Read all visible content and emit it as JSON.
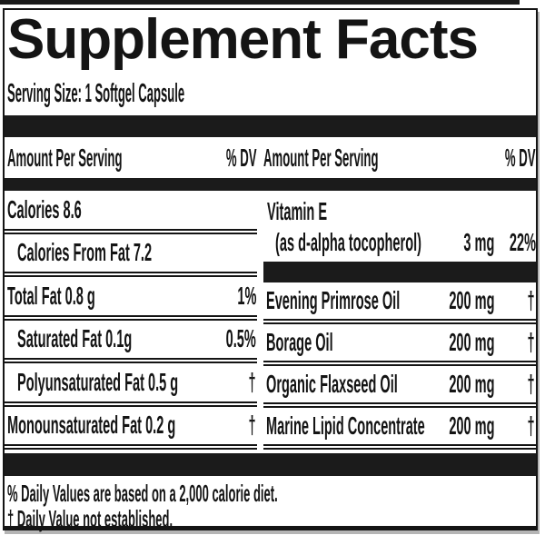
{
  "title": "Supplement Facts",
  "serving_size": "Serving Size: 1 Softgel Capsule",
  "columns_header": {
    "amount": "Amount Per Serving",
    "dv": "% DV"
  },
  "left_rows": [
    {
      "name": "Calories 8.6",
      "dv": ""
    },
    {
      "name": "Calories From Fat 7.2",
      "dv": ""
    },
    {
      "name": "Total Fat 0.8 g",
      "dv": "1%"
    },
    {
      "name": "Saturated Fat 0.1g",
      "dv": "0.5%"
    },
    {
      "name": "Polyunsaturated Fat 0.5 g",
      "dv": "†"
    },
    {
      "name": "Monounsaturated Fat 0.2 g",
      "dv": "†"
    }
  ],
  "right_column": {
    "vitamin_e": {
      "name": "Vitamin E",
      "sub": "(as d-alpha tocopherol)",
      "amount": "3 mg",
      "dv": "22%"
    },
    "rows": [
      {
        "name": "Evening Primrose Oil",
        "amount": "200 mg",
        "dv": "†"
      },
      {
        "name": "Borage Oil",
        "amount": "200 mg",
        "dv": "†"
      },
      {
        "name": "Organic Flaxseed Oil",
        "amount": "200 mg",
        "dv": "†"
      },
      {
        "name": "Marine Lipid Concentrate",
        "amount": "200 mg",
        "dv": "†"
      }
    ]
  },
  "footnotes": [
    "% Daily Values are based on a 2,000 calorie diet.",
    "† Daily Value not established."
  ],
  "colors": {
    "ink": "#141414",
    "bar": "#1b1b1b",
    "background": "#ffffff"
  }
}
